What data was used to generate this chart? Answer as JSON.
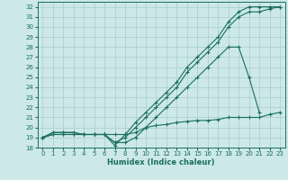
{
  "bg_color": "#cce8e8",
  "grid_color": "#aacccc",
  "line_color": "#1a6e60",
  "xlabel": "Humidex (Indice chaleur)",
  "xlim": [
    -0.5,
    23.5
  ],
  "ylim": [
    18,
    32.5
  ],
  "yticks": [
    18,
    19,
    20,
    21,
    22,
    23,
    24,
    25,
    26,
    27,
    28,
    29,
    30,
    31,
    32
  ],
  "xticks": [
    0,
    1,
    2,
    3,
    4,
    5,
    6,
    7,
    8,
    9,
    10,
    11,
    12,
    13,
    14,
    15,
    16,
    17,
    18,
    19,
    20,
    21,
    22,
    23
  ],
  "series": [
    {
      "x": [
        0,
        1,
        2,
        3,
        4,
        5,
        6,
        7,
        8,
        9,
        10,
        11,
        12,
        13,
        14,
        15,
        16,
        17,
        18,
        19,
        20,
        21,
        22,
        23
      ],
      "y": [
        19,
        19.5,
        19.5,
        19.5,
        19.3,
        19.3,
        19.3,
        18.2,
        19.3,
        20.5,
        21.5,
        22.5,
        23.5,
        24.5,
        26,
        27,
        28,
        29,
        30.5,
        31.5,
        32,
        32,
        32,
        32
      ]
    },
    {
      "x": [
        0,
        1,
        2,
        3,
        4,
        5,
        6,
        7,
        8,
        9,
        10,
        11,
        12,
        13,
        14,
        15,
        16,
        17,
        18,
        19,
        20,
        21,
        22,
        23
      ],
      "y": [
        19,
        19.5,
        19.5,
        19.5,
        19.3,
        19.3,
        19.3,
        18.5,
        19,
        20,
        21,
        22,
        23,
        24,
        25.5,
        26.5,
        27.5,
        28.5,
        30,
        31,
        31.5,
        31.5,
        31.8,
        32
      ]
    },
    {
      "x": [
        0,
        1,
        2,
        3,
        4,
        5,
        6,
        7,
        8,
        9,
        10,
        11,
        12,
        13,
        14,
        15,
        16,
        17,
        18,
        19,
        20,
        21
      ],
      "y": [
        19,
        19.3,
        19.3,
        19.3,
        19.3,
        19.3,
        19.3,
        18.5,
        18.5,
        19,
        20,
        21,
        22,
        23,
        24,
        25,
        26,
        27,
        28,
        28,
        25,
        21.5
      ]
    },
    {
      "x": [
        0,
        1,
        2,
        3,
        4,
        5,
        6,
        7,
        8,
        9,
        10,
        11,
        12,
        13,
        14,
        15,
        16,
        17,
        18,
        19,
        20,
        21,
        22,
        23
      ],
      "y": [
        19,
        19.3,
        19.3,
        19.3,
        19.3,
        19.3,
        19.3,
        19.3,
        19.3,
        19.5,
        20,
        20.2,
        20.3,
        20.5,
        20.6,
        20.7,
        20.7,
        20.8,
        21,
        21,
        21,
        21,
        21.3,
        21.5
      ]
    }
  ]
}
